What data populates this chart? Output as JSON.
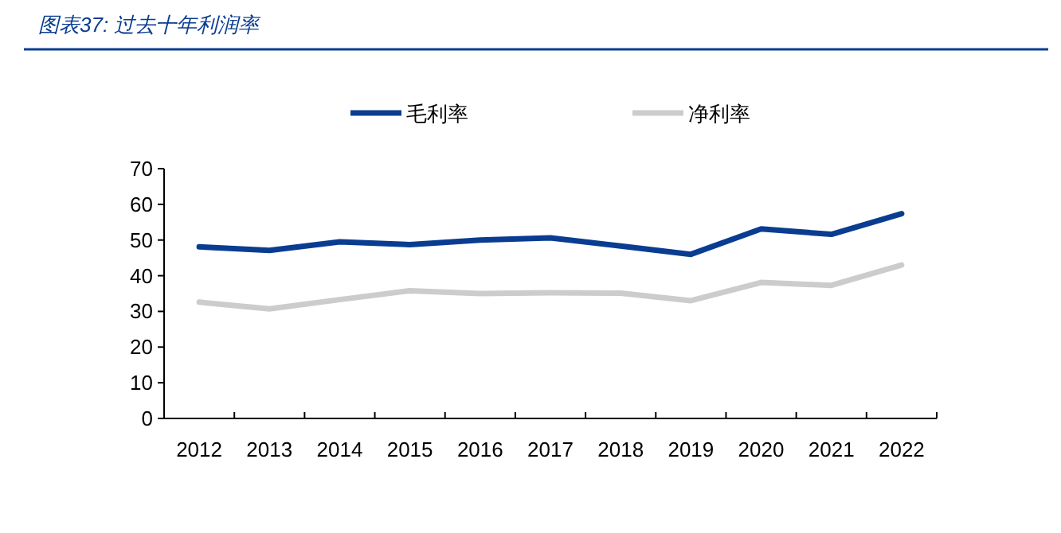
{
  "chart_data": {
    "type": "line",
    "title": "图表37: 过去十年利润率",
    "categories": [
      "2012",
      "2013",
      "2014",
      "2015",
      "2016",
      "2017",
      "2018",
      "2019",
      "2020",
      "2021",
      "2022"
    ],
    "series": [
      {
        "name": "毛利率",
        "color": "#0a3d91",
        "values": [
          48.1,
          47.1,
          49.5,
          48.7,
          50.0,
          50.6,
          48.3,
          46.0,
          53.1,
          51.6,
          57.4
        ]
      },
      {
        "name": "净利率",
        "color": "#cccccc",
        "values": [
          32.6,
          30.7,
          33.3,
          35.8,
          35.0,
          35.2,
          35.1,
          33.0,
          38.1,
          37.3,
          43.0
        ]
      }
    ],
    "ylim": [
      0,
      70
    ],
    "yticks": [
      0,
      10,
      20,
      30,
      40,
      50,
      60,
      70
    ],
    "grid": false,
    "legend": "top",
    "marker": "none",
    "line_style": "solid"
  }
}
